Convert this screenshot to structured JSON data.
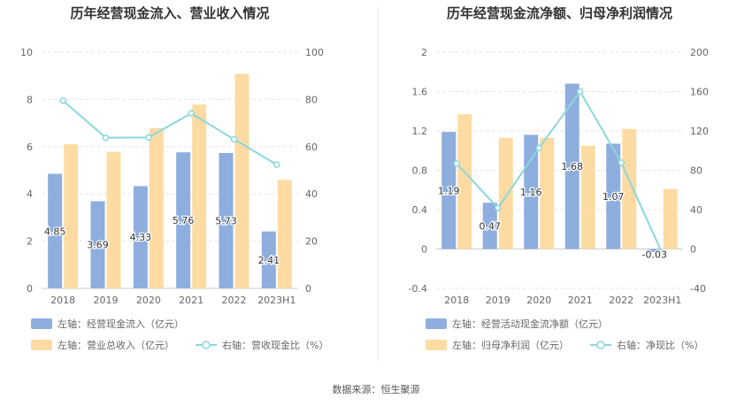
{
  "source_label": "数据来源：恒生聚源",
  "colors": {
    "bar_blue": "#8eaede",
    "bar_orange": "#fedba3",
    "line_cyan": "#8ad8dc",
    "grid": "#e6e6e6"
  },
  "chart_data": [
    {
      "type": "bar",
      "title": "历年经营现金流入、营业收入情况",
      "categories": [
        "2018",
        "2019",
        "2020",
        "2021",
        "2022",
        "2023H1"
      ],
      "left_axis": {
        "min": 0,
        "max": 10,
        "ticks": [
          "0",
          "2",
          "4",
          "6",
          "8",
          "10"
        ]
      },
      "right_axis": {
        "min": 0,
        "max": 100,
        "ticks": [
          "0",
          "20",
          "40",
          "60",
          "80",
          "100"
        ]
      },
      "series": [
        {
          "name": "左轴：经营现金流入（亿元）",
          "axis": "left",
          "kind": "bar",
          "values": [
            4.85,
            3.69,
            4.33,
            5.76,
            5.73,
            2.41
          ],
          "labels": [
            "4.85",
            "3.69",
            "4.33",
            "5.76",
            "5.73",
            "2.41"
          ]
        },
        {
          "name": "左轴：营业总收入（亿元）",
          "axis": "left",
          "kind": "bar",
          "values": [
            6.1,
            5.78,
            6.78,
            7.78,
            9.08,
            4.6
          ]
        },
        {
          "name": "右轴：营收现金比（%）",
          "axis": "right",
          "kind": "line",
          "values": [
            79.5,
            63.8,
            63.9,
            74.1,
            63.1,
            52.4
          ]
        }
      ],
      "legend": "bottom"
    },
    {
      "type": "bar",
      "title": "历年经营现金流净额、归母净利润情况",
      "categories": [
        "2018",
        "2019",
        "2020",
        "2021",
        "2022",
        "2023H1"
      ],
      "left_axis": {
        "min": -0.4,
        "max": 2,
        "ticks": [
          "-0.4",
          "0",
          "0.4",
          "0.8",
          "1.2",
          "1.6",
          "2"
        ]
      },
      "right_axis": {
        "min": -40,
        "max": 200,
        "ticks": [
          "-40",
          "0",
          "40",
          "80",
          "120",
          "160",
          "200"
        ]
      },
      "series": [
        {
          "name": "左轴：经营活动现金流净额（亿元）",
          "axis": "left",
          "kind": "bar",
          "values": [
            1.19,
            0.47,
            1.16,
            1.68,
            1.07,
            -0.03
          ],
          "labels": [
            "1.19",
            "0.47",
            "1.16",
            "1.68",
            "1.07",
            "-0.03"
          ]
        },
        {
          "name": "左轴：归母净利润（亿元）",
          "axis": "left",
          "kind": "bar",
          "values": [
            1.37,
            1.13,
            1.13,
            1.05,
            1.22,
            0.61
          ]
        },
        {
          "name": "右轴：净现比（%）",
          "axis": "right",
          "kind": "line",
          "values": [
            86.9,
            41.6,
            102.7,
            160.0,
            87.7,
            -4.9
          ]
        }
      ],
      "legend": "bottom"
    }
  ]
}
